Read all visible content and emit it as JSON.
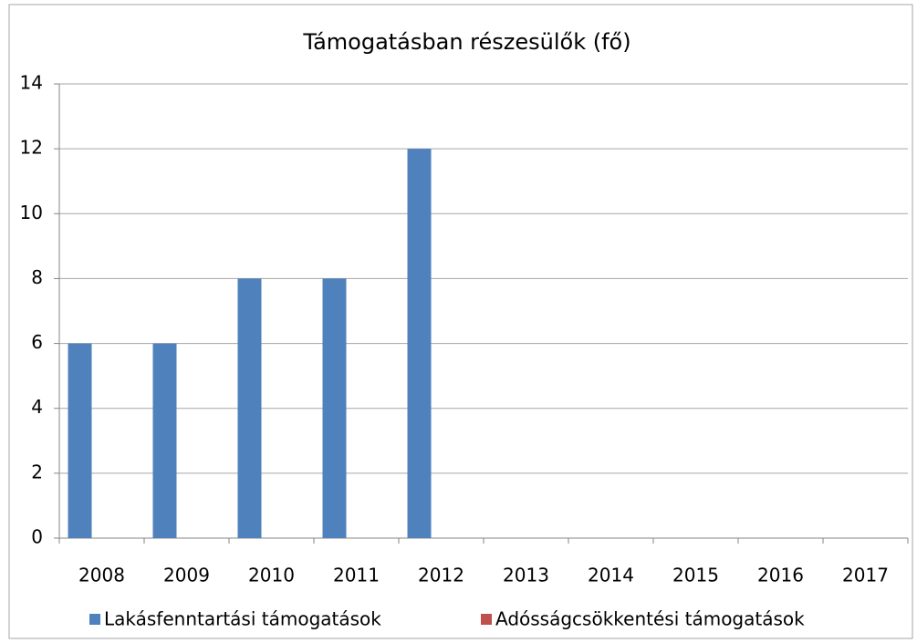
{
  "chart_data": {
    "type": "bar",
    "title": "Támogatásban részesülők (fő)",
    "categories": [
      "2008",
      "2009",
      "2010",
      "2011",
      "2012",
      "2013",
      "2014",
      "2015",
      "2016",
      "2017"
    ],
    "series": [
      {
        "name": "Lakásfenntartási támogatások",
        "color": "#4f81bd",
        "values": [
          6,
          6,
          8,
          8,
          12,
          0,
          0,
          0,
          0,
          0
        ]
      },
      {
        "name": "Adósságcsökkentési támogatások",
        "color": "#c0504d",
        "values": [
          0,
          0,
          0,
          0,
          0,
          0,
          0,
          0,
          0,
          0
        ]
      }
    ],
    "ylim": [
      0,
      14
    ],
    "yticks": [
      0,
      2,
      4,
      6,
      8,
      10,
      12,
      14
    ],
    "grid": true,
    "legend": "bottom"
  }
}
